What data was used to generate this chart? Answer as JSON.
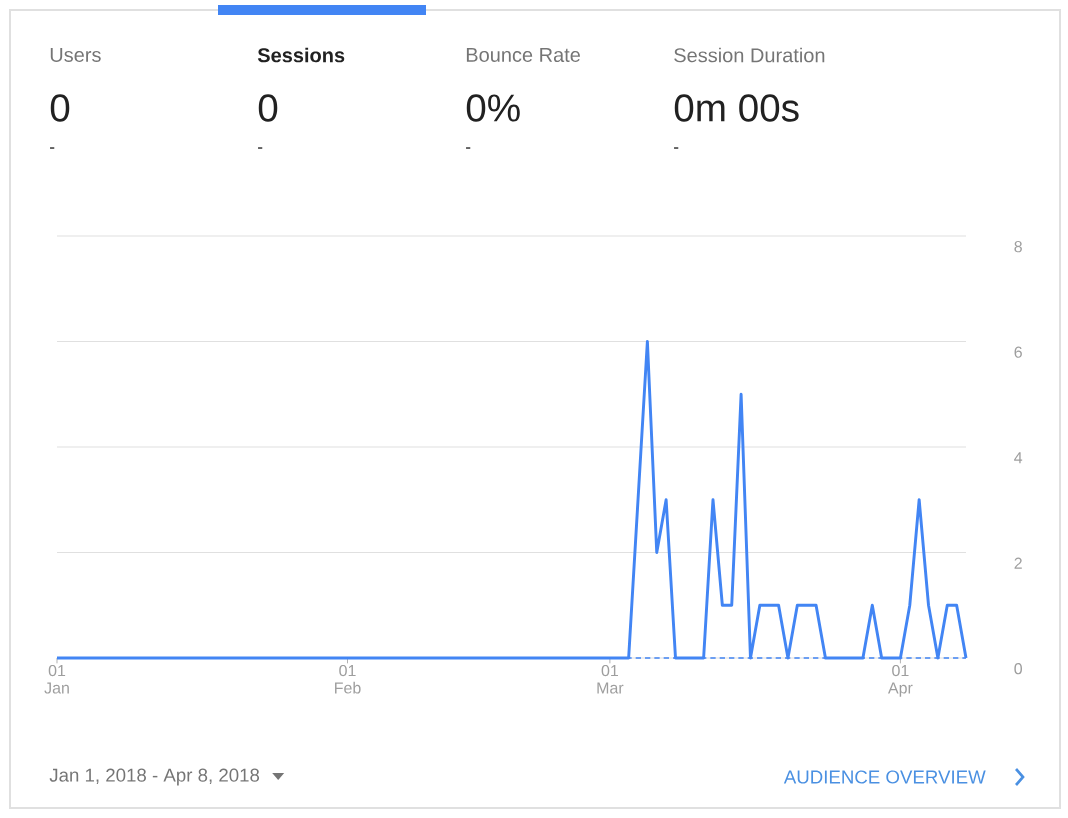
{
  "chart_data": {
    "type": "line",
    "annotations": [
      "Users",
      "0",
      "-",
      "Sessions",
      "0",
      "-",
      "Bounce Rate",
      "0%",
      "-",
      "Session Duration",
      "0m 00s",
      "-",
      "Jan 1, 2018 - Apr 8, 2018",
      "AUDIENCE OVERVIEW"
    ],
    "x": [
      "2018-01-01",
      "2018-01-02",
      "2018-01-03",
      "2018-01-04",
      "2018-01-05",
      "2018-01-06",
      "2018-01-07",
      "2018-01-08",
      "2018-01-09",
      "2018-01-10",
      "2018-01-11",
      "2018-01-12",
      "2018-01-13",
      "2018-01-14",
      "2018-01-15",
      "2018-01-16",
      "2018-01-17",
      "2018-01-18",
      "2018-01-19",
      "2018-01-20",
      "2018-01-21",
      "2018-01-22",
      "2018-01-23",
      "2018-01-24",
      "2018-01-25",
      "2018-01-26",
      "2018-01-27",
      "2018-01-28",
      "2018-01-29",
      "2018-01-30",
      "2018-01-31",
      "2018-02-01",
      "2018-02-02",
      "2018-02-03",
      "2018-02-04",
      "2018-02-05",
      "2018-02-06",
      "2018-02-07",
      "2018-02-08",
      "2018-02-09",
      "2018-02-10",
      "2018-02-11",
      "2018-02-12",
      "2018-02-13",
      "2018-02-14",
      "2018-02-15",
      "2018-02-16",
      "2018-02-17",
      "2018-02-18",
      "2018-02-19",
      "2018-02-20",
      "2018-02-21",
      "2018-02-22",
      "2018-02-23",
      "2018-02-24",
      "2018-02-25",
      "2018-02-26",
      "2018-02-27",
      "2018-02-28",
      "2018-03-01",
      "2018-03-02",
      "2018-03-03",
      "2018-03-04",
      "2018-03-05",
      "2018-03-06",
      "2018-03-07",
      "2018-03-08",
      "2018-03-09",
      "2018-03-10",
      "2018-03-11",
      "2018-03-12",
      "2018-03-13",
      "2018-03-14",
      "2018-03-15",
      "2018-03-16",
      "2018-03-17",
      "2018-03-18",
      "2018-03-19",
      "2018-03-20",
      "2018-03-21",
      "2018-03-22",
      "2018-03-23",
      "2018-03-24",
      "2018-03-25",
      "2018-03-26",
      "2018-03-27",
      "2018-03-28",
      "2018-03-29",
      "2018-03-30",
      "2018-03-31",
      "2018-04-01",
      "2018-04-02",
      "2018-04-03",
      "2018-04-04",
      "2018-04-05",
      "2018-04-06",
      "2018-04-07",
      "2018-04-08"
    ],
    "series": [
      {
        "color": "#4285f4",
        "values": [
          0,
          0,
          0,
          0,
          0,
          0,
          0,
          0,
          0,
          0,
          0,
          0,
          0,
          0,
          0,
          0,
          0,
          0,
          0,
          0,
          0,
          0,
          0,
          0,
          0,
          0,
          0,
          0,
          0,
          0,
          0,
          0,
          0,
          0,
          0,
          0,
          0,
          0,
          0,
          0,
          0,
          0,
          0,
          0,
          0,
          0,
          0,
          0,
          0,
          0,
          0,
          0,
          0,
          0,
          0,
          0,
          0,
          0,
          0,
          0,
          0,
          0,
          3,
          6,
          2,
          3,
          0,
          0,
          0,
          0,
          3,
          1,
          1,
          5,
          0,
          1,
          1,
          1,
          0,
          1,
          1,
          1,
          0,
          0,
          0,
          0,
          0,
          1,
          0,
          0,
          0,
          1,
          3,
          1,
          0,
          1,
          1,
          0
        ]
      }
    ],
    "xlim": [
      "2018-01-01",
      "2018-04-08"
    ],
    "xticks": [
      {
        "value": "2018-01-01",
        "label": "01 Jan"
      },
      {
        "value": "2018-02-01",
        "label": "01 Feb"
      },
      {
        "value": "2018-03-01",
        "label": "01 Mar"
      },
      {
        "value": "2018-04-01",
        "label": "01 Apr"
      }
    ],
    "ref_lines": [
      {
        "axis": "y",
        "value": 0,
        "color": "#4285f4",
        "line_style": "dashed"
      }
    ],
    "line_style": "solid",
    "ylim": [
      0,
      8
    ],
    "yticks": [
      0,
      2,
      4,
      6,
      8
    ],
    "grid": "y"
  }
}
